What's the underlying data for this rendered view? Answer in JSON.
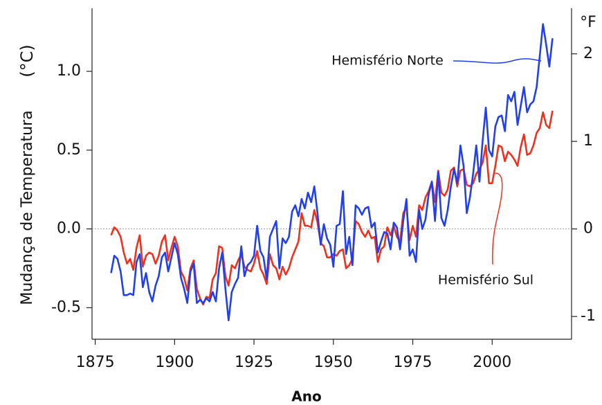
{
  "chart_data": {
    "type": "line",
    "y_label": "Mudança de Temperatura",
    "y_unit": "(°C)",
    "y2_unit": "°F",
    "x_label": "Ano",
    "annotations": [
      "Hemisfério Norte",
      "Hemisfério Sul"
    ],
    "x": [
      1880,
      1881,
      1882,
      1883,
      1884,
      1885,
      1886,
      1887,
      1888,
      1889,
      1890,
      1891,
      1892,
      1893,
      1894,
      1895,
      1896,
      1897,
      1898,
      1899,
      1900,
      1901,
      1902,
      1903,
      1904,
      1905,
      1906,
      1907,
      1908,
      1909,
      1910,
      1911,
      1912,
      1913,
      1914,
      1915,
      1916,
      1917,
      1918,
      1919,
      1920,
      1921,
      1922,
      1923,
      1924,
      1925,
      1926,
      1927,
      1928,
      1929,
      1930,
      1931,
      1932,
      1933,
      1934,
      1935,
      1936,
      1937,
      1938,
      1939,
      1940,
      1941,
      1942,
      1943,
      1944,
      1945,
      1946,
      1947,
      1948,
      1949,
      1950,
      1951,
      1952,
      1953,
      1954,
      1955,
      1956,
      1957,
      1958,
      1959,
      1960,
      1961,
      1962,
      1963,
      1964,
      1965,
      1966,
      1967,
      1968,
      1969,
      1970,
      1971,
      1972,
      1973,
      1974,
      1975,
      1976,
      1977,
      1978,
      1979,
      1980,
      1981,
      1982,
      1983,
      1984,
      1985,
      1986,
      1987,
      1988,
      1989,
      1990,
      1991,
      1992,
      1993,
      1994,
      1995,
      1996,
      1997,
      1998,
      1999,
      2000,
      2001,
      2002,
      2003,
      2004,
      2005,
      2006,
      2007,
      2008,
      2009,
      2010,
      2011,
      2012,
      2013,
      2014,
      2015,
      2016,
      2017,
      2018,
      2019
    ],
    "series": [
      {
        "color": "#1f3ff0",
        "values": [
          -0.28,
          -0.17,
          -0.19,
          -0.27,
          -0.42,
          -0.42,
          -0.41,
          -0.42,
          -0.21,
          -0.16,
          -0.37,
          -0.28,
          -0.4,
          -0.46,
          -0.36,
          -0.3,
          -0.18,
          -0.15,
          -0.27,
          -0.18,
          -0.09,
          -0.16,
          -0.31,
          -0.38,
          -0.47,
          -0.27,
          -0.22,
          -0.47,
          -0.45,
          -0.47,
          -0.44,
          -0.46,
          -0.4,
          -0.46,
          -0.25,
          -0.15,
          -0.38,
          -0.58,
          -0.4,
          -0.35,
          -0.31,
          -0.11,
          -0.3,
          -0.23,
          -0.21,
          -0.17,
          0.02,
          -0.14,
          -0.18,
          -0.32,
          -0.05,
          0.0,
          0.05,
          -0.25,
          -0.06,
          -0.09,
          -0.05,
          0.11,
          0.15,
          0.08,
          0.19,
          0.13,
          0.23,
          0.17,
          0.27,
          0.1,
          -0.1,
          0.03,
          -0.06,
          -0.1,
          -0.24,
          0.02,
          0.03,
          0.24,
          -0.16,
          -0.05,
          -0.23,
          0.15,
          0.13,
          0.09,
          0.13,
          0.14,
          0.01,
          0.04,
          -0.15,
          -0.08,
          -0.02,
          -0.03,
          -0.13,
          0.04,
          0.01,
          -0.13,
          0.05,
          0.19,
          -0.17,
          -0.13,
          -0.21,
          0.12,
          0.0,
          0.06,
          0.22,
          0.3,
          0.05,
          0.36,
          0.07,
          0.02,
          0.12,
          0.27,
          0.38,
          0.29,
          0.53,
          0.4,
          0.1,
          0.2,
          0.35,
          0.53,
          0.3,
          0.56,
          0.77,
          0.5,
          0.46,
          0.65,
          0.71,
          0.72,
          0.62,
          0.85,
          0.81,
          0.87,
          0.66,
          0.78,
          0.9,
          0.74,
          0.79,
          0.81,
          0.9,
          1.1,
          1.3,
          1.17,
          1.03,
          1.21
        ]
      },
      {
        "color": "#f0301c",
        "values": [
          -0.04,
          0.01,
          -0.01,
          -0.05,
          -0.15,
          -0.22,
          -0.19,
          -0.26,
          -0.12,
          -0.04,
          -0.24,
          -0.17,
          -0.15,
          -0.16,
          -0.22,
          -0.17,
          -0.08,
          -0.04,
          -0.2,
          -0.12,
          -0.05,
          -0.11,
          -0.27,
          -0.31,
          -0.39,
          -0.25,
          -0.2,
          -0.38,
          -0.44,
          -0.48,
          -0.43,
          -0.44,
          -0.32,
          -0.28,
          -0.11,
          -0.12,
          -0.3,
          -0.36,
          -0.23,
          -0.25,
          -0.2,
          -0.16,
          -0.24,
          -0.26,
          -0.27,
          -0.22,
          -0.14,
          -0.25,
          -0.29,
          -0.35,
          -0.16,
          -0.23,
          -0.25,
          -0.32,
          -0.24,
          -0.29,
          -0.25,
          -0.18,
          -0.13,
          -0.08,
          0.1,
          0.02,
          0.02,
          0.01,
          0.12,
          0.04,
          -0.09,
          -0.11,
          -0.18,
          -0.18,
          -0.16,
          -0.17,
          -0.14,
          -0.13,
          -0.25,
          -0.23,
          -0.19,
          0.05,
          0.03,
          -0.02,
          -0.05,
          -0.01,
          -0.06,
          -0.05,
          -0.21,
          -0.13,
          -0.11,
          0.01,
          -0.04,
          0.02,
          -0.05,
          -0.08,
          0.1,
          0.14,
          -0.07,
          0.02,
          -0.05,
          0.15,
          0.12,
          0.2,
          0.24,
          0.3,
          0.17,
          0.37,
          0.23,
          0.21,
          0.25,
          0.37,
          0.39,
          0.27,
          0.37,
          0.38,
          0.28,
          0.27,
          0.29,
          0.35,
          0.38,
          0.42,
          0.53,
          0.29,
          0.29,
          0.4,
          0.53,
          0.52,
          0.43,
          0.49,
          0.47,
          0.44,
          0.4,
          0.52,
          0.6,
          0.47,
          0.48,
          0.53,
          0.61,
          0.64,
          0.74,
          0.66,
          0.64,
          0.75
        ]
      }
    ],
    "xlim": [
      1874,
      2025
    ],
    "xticks": [
      1875,
      1900,
      1925,
      1950,
      1975,
      2000
    ],
    "ylim": [
      -0.7,
      1.4
    ],
    "yticks": [
      {
        "value": -0.5,
        "label": "-0.5"
      },
      {
        "value": 0,
        "label": "0.0"
      },
      0.5,
      {
        "value": 1,
        "label": "1.0"
      }
    ],
    "y2lim": [
      -1.26,
      2.52
    ],
    "y2ticks": [
      -1,
      0,
      1,
      2
    ],
    "reference_line": 0
  }
}
